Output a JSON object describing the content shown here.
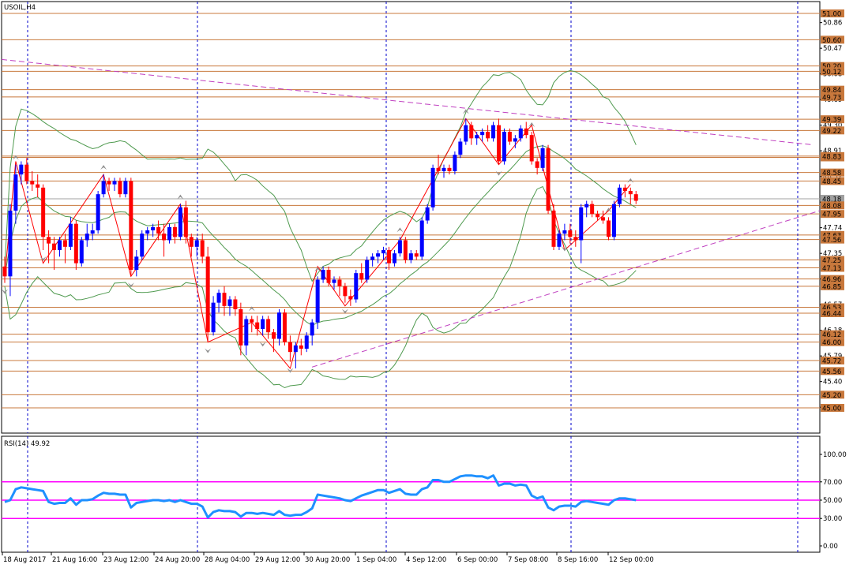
{
  "chart_data": {
    "type": "candlestick",
    "symbol_title": "USOIL,H4",
    "price_axis": {
      "range": [
        44.8,
        51.1
      ],
      "ticks": [
        "50.86",
        "50.47",
        "50.08",
        "49.69",
        "49.30",
        "48.91",
        "48.52",
        "48.13",
        "47.74",
        "47.35",
        "46.96",
        "46.57",
        "46.18",
        "45.79",
        "45.40",
        "45.01"
      ],
      "levels": [
        "51.00",
        "50.60",
        "50.20",
        "50.12",
        "49.84",
        "49.73",
        "49.39",
        "49.22",
        "48.81",
        "48.83",
        "48.58",
        "48.45",
        "48.18",
        "48.08",
        "47.95",
        "47.63",
        "47.56",
        "47.25",
        "47.13",
        "46.96",
        "46.85",
        "46.53",
        "46.44",
        "46.12",
        "46.00",
        "45.72",
        "45.56",
        "45.20",
        "45.00"
      ],
      "current_price": "48.18",
      "level_color": "#c8783c",
      "current_price_color": "#a0a0a0"
    },
    "time_axis": {
      "labels": [
        "18 Aug 2017",
        "21 Aug 16:00",
        "23 Aug 12:00",
        "24 Aug 20:00",
        "28 Aug 04:00",
        "29 Aug 12:00",
        "30 Aug 20:00",
        "1 Sep 04:00",
        "4 Sep 12:00",
        "6 Sep 00:00",
        "7 Sep 08:00",
        "8 Sep 16:00",
        "12 Sep 00:00"
      ],
      "separators": [
        1,
        4,
        7,
        10,
        13,
        16
      ]
    },
    "candles": [
      [
        47.15,
        47.3,
        46.9,
        47.0
      ],
      [
        47.0,
        48.1,
        46.7,
        48.0
      ],
      [
        48.0,
        48.7,
        47.8,
        48.55
      ],
      [
        48.55,
        48.75,
        48.4,
        48.7
      ],
      [
        48.7,
        48.8,
        48.4,
        48.45
      ],
      [
        48.45,
        48.6,
        48.3,
        48.4
      ],
      [
        48.4,
        48.55,
        48.2,
        48.35
      ],
      [
        48.35,
        48.4,
        47.4,
        47.6
      ],
      [
        47.6,
        47.7,
        47.2,
        47.5
      ],
      [
        47.5,
        47.6,
        47.1,
        47.4
      ],
      [
        47.4,
        47.6,
        47.3,
        47.55
      ],
      [
        47.55,
        47.65,
        47.2,
        47.45
      ],
      [
        47.45,
        47.9,
        47.4,
        47.8
      ],
      [
        47.8,
        47.85,
        47.1,
        47.2
      ],
      [
        47.2,
        47.6,
        47.15,
        47.55
      ],
      [
        47.55,
        47.8,
        47.45,
        47.65
      ],
      [
        47.65,
        47.8,
        47.55,
        47.7
      ],
      [
        47.7,
        48.3,
        47.65,
        48.25
      ],
      [
        48.25,
        48.55,
        48.2,
        48.45
      ],
      [
        48.45,
        48.5,
        48.3,
        48.4
      ],
      [
        48.4,
        48.5,
        48.3,
        48.45
      ],
      [
        48.45,
        48.5,
        48.2,
        48.25
      ],
      [
        48.25,
        48.5,
        48.2,
        48.45
      ],
      [
        48.45,
        48.5,
        47.0,
        47.1
      ],
      [
        47.1,
        47.4,
        47.0,
        47.3
      ],
      [
        47.3,
        47.7,
        47.25,
        47.65
      ],
      [
        47.65,
        47.75,
        47.55,
        47.7
      ],
      [
        47.7,
        47.8,
        47.6,
        47.75
      ],
      [
        47.75,
        47.85,
        47.55,
        47.65
      ],
      [
        47.65,
        47.8,
        47.3,
        47.55
      ],
      [
        47.55,
        47.8,
        47.5,
        47.75
      ],
      [
        47.75,
        47.8,
        47.5,
        47.6
      ],
      [
        47.6,
        48.1,
        47.55,
        48.05
      ],
      [
        48.05,
        48.15,
        47.5,
        47.6
      ],
      [
        47.6,
        47.65,
        47.3,
        47.45
      ],
      [
        47.45,
        47.6,
        47.3,
        47.55
      ],
      [
        47.55,
        47.65,
        47.2,
        47.3
      ],
      [
        47.3,
        47.45,
        46.0,
        46.15
      ],
      [
        46.15,
        46.7,
        46.1,
        46.6
      ],
      [
        46.6,
        46.8,
        46.45,
        46.75
      ],
      [
        46.75,
        46.85,
        46.4,
        46.55
      ],
      [
        46.55,
        46.7,
        46.4,
        46.65
      ],
      [
        46.65,
        46.7,
        46.4,
        46.5
      ],
      [
        46.5,
        46.6,
        45.8,
        45.95
      ],
      [
        45.95,
        46.4,
        45.8,
        46.35
      ],
      [
        46.35,
        46.4,
        46.15,
        46.3
      ],
      [
        46.3,
        46.4,
        46.1,
        46.2
      ],
      [
        46.2,
        46.4,
        46.1,
        46.35
      ],
      [
        46.35,
        46.4,
        46.05,
        46.15
      ],
      [
        46.15,
        46.2,
        45.85,
        46.05
      ],
      [
        46.05,
        46.5,
        45.95,
        46.45
      ],
      [
        46.45,
        46.5,
        45.95,
        46.0
      ],
      [
        46.0,
        46.1,
        45.7,
        45.85
      ],
      [
        45.85,
        46.0,
        45.6,
        45.95
      ],
      [
        45.95,
        46.05,
        45.8,
        45.9
      ],
      [
        45.9,
        46.15,
        45.85,
        46.1
      ],
      [
        46.1,
        46.35,
        45.95,
        46.3
      ],
      [
        46.3,
        47.0,
        46.2,
        46.95
      ],
      [
        46.95,
        47.15,
        46.9,
        47.1
      ],
      [
        47.1,
        47.15,
        46.85,
        46.9
      ],
      [
        46.9,
        47.0,
        46.8,
        46.95
      ],
      [
        46.95,
        47.0,
        46.7,
        46.85
      ],
      [
        46.85,
        46.9,
        46.6,
        46.7
      ],
      [
        46.7,
        46.8,
        46.55,
        46.65
      ],
      [
        46.65,
        47.1,
        46.6,
        47.05
      ],
      [
        47.05,
        47.2,
        46.9,
        46.95
      ],
      [
        46.95,
        47.3,
        46.9,
        47.25
      ],
      [
        47.25,
        47.35,
        47.15,
        47.3
      ],
      [
        47.3,
        47.4,
        47.2,
        47.35
      ],
      [
        47.35,
        47.45,
        47.25,
        47.4
      ],
      [
        47.4,
        47.45,
        47.1,
        47.2
      ],
      [
        47.2,
        47.4,
        47.15,
        47.35
      ],
      [
        47.35,
        47.6,
        47.3,
        47.55
      ],
      [
        47.55,
        47.6,
        47.2,
        47.25
      ],
      [
        47.25,
        47.4,
        47.2,
        47.35
      ],
      [
        47.35,
        47.4,
        47.25,
        47.3
      ],
      [
        47.3,
        47.9,
        47.25,
        47.85
      ],
      [
        47.85,
        48.1,
        47.8,
        48.05
      ],
      [
        48.05,
        48.7,
        48.0,
        48.65
      ],
      [
        48.65,
        48.85,
        48.55,
        48.6
      ],
      [
        48.6,
        48.7,
        48.5,
        48.65
      ],
      [
        48.65,
        48.7,
        48.55,
        48.6
      ],
      [
        48.6,
        48.9,
        48.55,
        48.85
      ],
      [
        48.85,
        49.1,
        48.8,
        49.05
      ],
      [
        49.05,
        49.4,
        49.0,
        49.3
      ],
      [
        49.3,
        49.35,
        49.0,
        49.1
      ],
      [
        49.1,
        49.2,
        49.0,
        49.15
      ],
      [
        49.15,
        49.25,
        49.05,
        49.2
      ],
      [
        49.2,
        49.3,
        49.05,
        49.1
      ],
      [
        49.1,
        49.35,
        49.05,
        49.3
      ],
      [
        49.3,
        49.4,
        48.7,
        48.75
      ],
      [
        48.75,
        49.25,
        48.7,
        49.2
      ],
      [
        49.2,
        49.25,
        49.0,
        49.05
      ],
      [
        49.05,
        49.15,
        48.95,
        49.1
      ],
      [
        49.1,
        49.3,
        49.05,
        49.25
      ],
      [
        49.25,
        49.35,
        49.1,
        49.15
      ],
      [
        49.15,
        49.2,
        48.7,
        48.75
      ],
      [
        48.75,
        48.8,
        48.55,
        48.65
      ],
      [
        48.65,
        49.0,
        48.6,
        48.95
      ],
      [
        48.95,
        49.0,
        47.95,
        48.0
      ],
      [
        48.0,
        48.1,
        47.4,
        47.45
      ],
      [
        47.45,
        47.7,
        47.4,
        47.65
      ],
      [
        47.65,
        47.8,
        47.55,
        47.7
      ],
      [
        47.7,
        47.8,
        47.5,
        47.6
      ],
      [
        47.6,
        47.7,
        47.45,
        47.55
      ],
      [
        47.55,
        48.1,
        47.2,
        48.05
      ],
      [
        48.05,
        48.15,
        47.9,
        48.1
      ],
      [
        48.1,
        48.15,
        47.9,
        47.95
      ],
      [
        47.95,
        48.0,
        47.85,
        47.9
      ],
      [
        47.9,
        48.0,
        47.8,
        47.85
      ],
      [
        47.85,
        47.9,
        47.55,
        47.6
      ],
      [
        47.6,
        48.15,
        47.55,
        48.1
      ],
      [
        48.1,
        48.4,
        48.05,
        48.35
      ],
      [
        48.35,
        48.4,
        48.2,
        48.3
      ],
      [
        48.3,
        48.35,
        48.1,
        48.25
      ],
      [
        48.25,
        48.3,
        48.1,
        48.15
      ]
    ],
    "rsi": {
      "label": "RSI(14) 49.92",
      "ticks": [
        "100.00",
        "70.00",
        "50.00",
        "30.00",
        "0.00"
      ],
      "levels": [
        70,
        50,
        30
      ],
      "level_color": "#ff00ff",
      "line_color": "#1e90ff",
      "values": [
        48,
        50,
        62,
        64,
        63,
        62,
        61,
        60,
        48,
        46,
        47,
        47,
        52,
        45,
        50,
        50,
        51,
        55,
        58,
        57,
        57,
        56,
        56,
        42,
        47,
        48,
        49,
        50,
        50,
        49,
        50,
        48,
        50,
        48,
        46,
        46,
        43,
        31,
        37,
        39,
        38,
        38,
        37,
        32,
        36,
        36,
        35,
        36,
        35,
        34,
        38,
        34,
        33,
        34,
        34,
        37,
        41,
        56,
        55,
        54,
        53,
        52,
        50,
        49,
        52,
        55,
        57,
        59,
        61,
        61,
        58,
        60,
        62,
        57,
        56,
        56,
        62,
        64,
        72,
        72,
        70,
        70,
        73,
        76,
        77,
        77,
        76,
        76,
        74,
        77,
        66,
        68,
        68,
        66,
        67,
        66,
        55,
        52,
        54,
        42,
        39,
        43,
        44,
        44,
        43,
        48,
        49,
        48,
        47,
        46,
        45,
        50,
        52,
        52,
        51,
        50
      ]
    },
    "zigzag_pivots": [
      [
        0,
        47.0
      ],
      [
        2,
        48.75
      ],
      [
        7,
        47.2
      ],
      [
        18,
        48.55
      ],
      [
        23,
        47.0
      ],
      [
        32,
        48.1
      ],
      [
        37,
        46.0
      ],
      [
        45,
        46.3
      ],
      [
        47,
        46.1
      ],
      [
        52,
        45.6
      ],
      [
        57,
        47.15
      ],
      [
        62,
        46.55
      ],
      [
        72,
        47.55
      ],
      [
        84,
        49.4
      ],
      [
        90,
        48.7
      ],
      [
        96,
        49.3
      ],
      [
        102,
        47.4
      ],
      [
        110,
        48.0
      ],
      [
        114,
        48.4
      ]
    ],
    "bands": {
      "color": "#4f9a4f"
    },
    "trendlines": {
      "color": "#c040c0"
    },
    "candle_colors": {
      "up": "#0000ff",
      "down": "#ff0000",
      "zigzag": "#ff0000"
    }
  }
}
